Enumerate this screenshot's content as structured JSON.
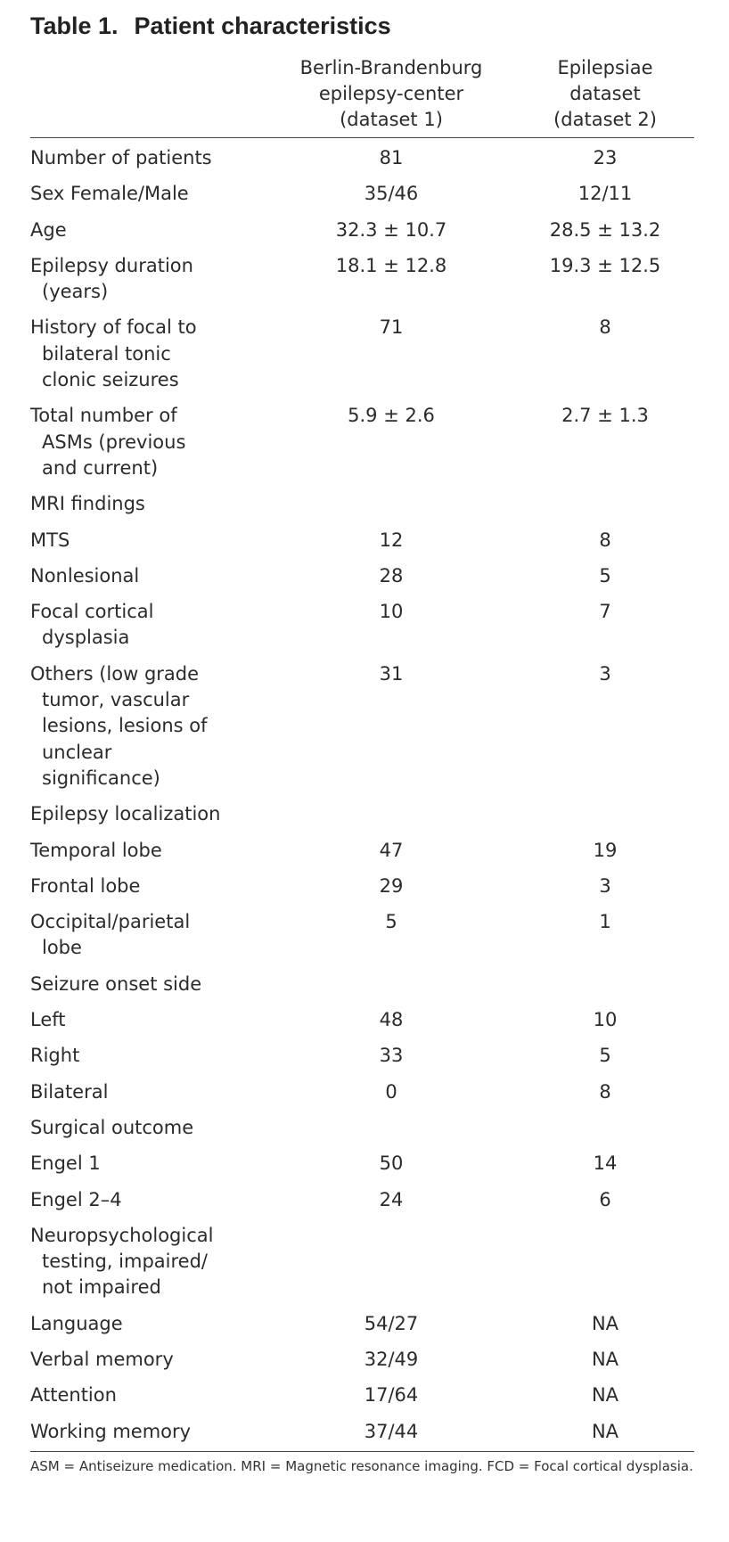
{
  "title": {
    "number": "Table 1.",
    "text": "Patient characteristics"
  },
  "columns": [
    {
      "lines": [
        "Berlin-Brandenburg",
        "epilepsy-center",
        "(dataset 1)"
      ]
    },
    {
      "lines": [
        "Epilepsiae",
        "dataset",
        "(dataset 2)"
      ]
    }
  ],
  "rows": [
    {
      "label": [
        "Number of patients"
      ],
      "v1": "81",
      "v2": "23"
    },
    {
      "label": [
        "Sex Female/Male"
      ],
      "v1": "35/46",
      "v2": "12/11"
    },
    {
      "label": [
        "Age"
      ],
      "v1": "32.3 ± 10.7",
      "v2": "28.5 ± 13.2"
    },
    {
      "label": [
        "Epilepsy duration",
        "(years)"
      ],
      "v1": "18.1 ± 12.8",
      "v2": "19.3 ± 12.5"
    },
    {
      "label": [
        "History of focal to",
        "bilateral tonic",
        "clonic seizures"
      ],
      "v1": "71",
      "v2": "8"
    },
    {
      "label": [
        "Total number of",
        "ASMs (previous",
        "and current)"
      ],
      "v1": "5.9 ± 2.6",
      "v2": "2.7 ± 1.3"
    },
    {
      "label": [
        "MRI findings"
      ],
      "v1": "",
      "v2": ""
    },
    {
      "label": [
        "MTS"
      ],
      "v1": "12",
      "v2": "8"
    },
    {
      "label": [
        "Nonlesional"
      ],
      "v1": "28",
      "v2": "5"
    },
    {
      "label": [
        "Focal cortical",
        "dysplasia"
      ],
      "v1": "10",
      "v2": "7"
    },
    {
      "label": [
        "Others (low grade",
        "tumor, vascular",
        "lesions, lesions of",
        "unclear",
        "significance)"
      ],
      "v1": "31",
      "v2": "3"
    },
    {
      "label": [
        "Epilepsy localization"
      ],
      "v1": "",
      "v2": ""
    },
    {
      "label": [
        "Temporal lobe"
      ],
      "v1": "47",
      "v2": "19"
    },
    {
      "label": [
        "Frontal lobe"
      ],
      "v1": "29",
      "v2": "3"
    },
    {
      "label": [
        "Occipital/parietal",
        "lobe"
      ],
      "v1": "5",
      "v2": "1"
    },
    {
      "label": [
        "Seizure onset side"
      ],
      "v1": "",
      "v2": ""
    },
    {
      "label": [
        "Left"
      ],
      "v1": "48",
      "v2": "10"
    },
    {
      "label": [
        "Right"
      ],
      "v1": "33",
      "v2": "5"
    },
    {
      "label": [
        "Bilateral"
      ],
      "v1": "0",
      "v2": "8"
    },
    {
      "label": [
        "Surgical outcome"
      ],
      "v1": "",
      "v2": ""
    },
    {
      "label": [
        "Engel 1"
      ],
      "v1": "50",
      "v2": "14"
    },
    {
      "label": [
        "Engel 2–4"
      ],
      "v1": "24",
      "v2": "6"
    },
    {
      "label": [
        "Neuropsychological",
        "testing, impaired/",
        "not impaired"
      ],
      "v1": "",
      "v2": ""
    },
    {
      "label": [
        "Language"
      ],
      "v1": "54/27",
      "v2": "NA"
    },
    {
      "label": [
        "Verbal memory"
      ],
      "v1": "32/49",
      "v2": "NA"
    },
    {
      "label": [
        "Attention"
      ],
      "v1": "17/64",
      "v2": "NA"
    },
    {
      "label": [
        "Working memory"
      ],
      "v1": "37/44",
      "v2": "NA"
    }
  ],
  "footnote": "ASM = Antiseizure medication. MRI = Magnetic resonance imaging. FCD = Focal cortical dysplasia."
}
